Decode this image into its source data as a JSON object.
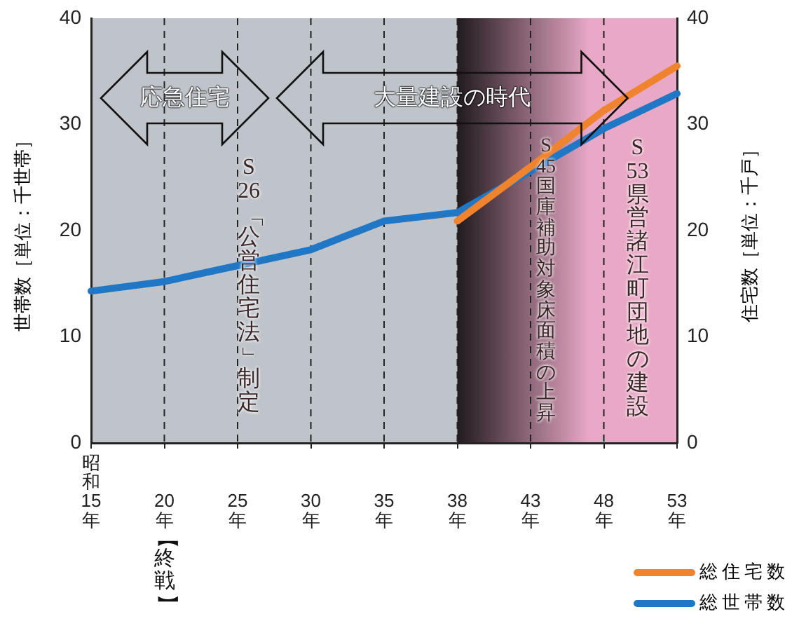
{
  "chart_data": {
    "type": "line",
    "categories": [
      "昭和15年",
      "20年",
      "25年",
      "30年",
      "35年",
      "38年",
      "43年",
      "48年",
      "53年"
    ],
    "series": [
      {
        "name": "総住宅数",
        "color": "#f0832e",
        "values": [
          null,
          null,
          null,
          null,
          null,
          20.9,
          26,
          31.3,
          35.5
        ]
      },
      {
        "name": "総世帯数",
        "color": "#1f77c6",
        "values": [
          14.3,
          15.2,
          16.7,
          18.2,
          20.9,
          21.7,
          25.6,
          29.6,
          32.9
        ]
      }
    ],
    "ylabel": "世帯数［単位：千世帯］",
    "y2label": "住宅数［単位：千戸］",
    "ylim": [
      0,
      40
    ],
    "yticks": [
      0,
      10,
      20,
      30,
      40
    ],
    "y2lim": [
      0,
      40
    ],
    "y2ticks": [
      0,
      10,
      20,
      30,
      40
    ],
    "grid": "x",
    "legend": "bottom right",
    "marker": "none",
    "bands": [
      {
        "axis": "x",
        "from": "38年",
        "to": "53年",
        "color": "#e9a8c6"
      }
    ],
    "annotations": [
      "応急住宅",
      "大量建設の時代",
      "S26「公営住宅法」制定",
      "S45国庫補助対象床面積の上昇",
      "S53県営諸江町団地の建設",
      "【終戦】"
    ]
  }
}
